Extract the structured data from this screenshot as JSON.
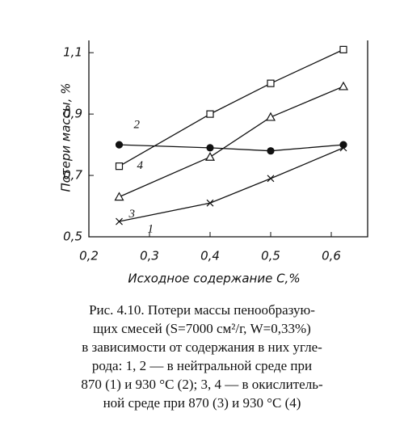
{
  "chart_data": {
    "type": "line",
    "y_label": "Потери массы, %",
    "x_label": "Исходное содержание С,%",
    "xlim": [
      0.2,
      0.66
    ],
    "ylim": [
      0.5,
      1.14
    ],
    "xticks": [
      {
        "value": 0.2,
        "label": "0,2"
      },
      {
        "value": 0.3,
        "label": "0,3"
      },
      {
        "value": 0.4,
        "label": "0,4"
      },
      {
        "value": 0.5,
        "label": "0,5"
      },
      {
        "value": 0.6,
        "label": "0,6"
      }
    ],
    "yticks": [
      {
        "value": 0.5,
        "label": "0,5"
      },
      {
        "value": 0.7,
        "label": "0,7"
      },
      {
        "value": 0.9,
        "label": "0,9"
      },
      {
        "value": 1.1,
        "label": "1,1"
      }
    ],
    "x": [
      0.25,
      0.4,
      0.5,
      0.62
    ],
    "series": [
      {
        "name": "1",
        "color": "#111111",
        "marker": "x",
        "values": [
          0.55,
          0.61,
          0.69,
          0.79
        ]
      },
      {
        "name": "2",
        "color": "#111111",
        "marker": "dot",
        "values": [
          0.8,
          0.79,
          0.78,
          0.8
        ]
      },
      {
        "name": "3",
        "color": "#111111",
        "marker": "triangle",
        "values": [
          0.63,
          0.76,
          0.89,
          0.99
        ]
      },
      {
        "name": "4",
        "color": "#111111",
        "marker": "square",
        "values": [
          0.73,
          0.9,
          1.0,
          1.11
        ]
      }
    ],
    "caption": [
      "Рис. 4.10. Потери массы пенообразую-",
      "щих смесей (S=7000 см²/г, W=0,33%)",
      "в зависимости от содержания в них угле-",
      "рода: 1, 2 — в нейтральной среде при",
      "870 (1) и 930 °С (2); 3, 4 — в окислитель-",
      "ной среде при 870 (3) и 930 °С (4)"
    ]
  }
}
